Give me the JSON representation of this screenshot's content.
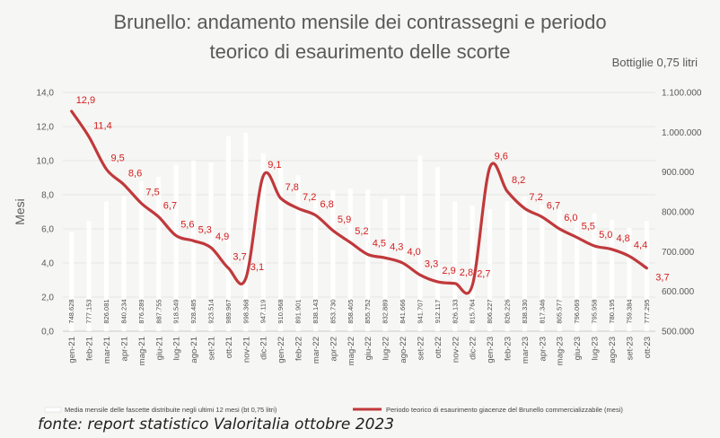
{
  "source_note": "fonte: report statistico Valoritalia ottobre 2023",
  "chart_data": {
    "type": "bar+line",
    "title_lines": [
      "Brunello: andamento mensile dei contrassegni e periodo",
      "teorico di esaurimento delle scorte"
    ],
    "subtitle": "Bottiglie 0,75 litri",
    "ylabel": "Mesi",
    "y_left": {
      "min": 0,
      "max": 14,
      "step": 2,
      "ticks": [
        "0,0",
        "2,0",
        "4,0",
        "6,0",
        "8,0",
        "10,0",
        "12,0",
        "14,0"
      ]
    },
    "y_right": {
      "min": 500000,
      "max": 1100000,
      "step": 100000,
      "ticks": [
        "500.000",
        "600.000",
        "700.000",
        "800.000",
        "900.000",
        "1.000.000",
        "1.100.000"
      ]
    },
    "categories": [
      "gen-21",
      "feb-21",
      "mar-21",
      "apr-21",
      "mag-21",
      "giu-21",
      "lug-21",
      "ago-21",
      "set-21",
      "ott-21",
      "nov-21",
      "dic-21",
      "gen-22",
      "feb-22",
      "mar-22",
      "apr-22",
      "mag-22",
      "giu-22",
      "lug-22",
      "ago-22",
      "set-22",
      "ott-22",
      "nov-22",
      "dic-22",
      "gen-23",
      "feb-23",
      "mar-23",
      "apr-23",
      "mag-23",
      "giu-23",
      "lug-23",
      "ago-23",
      "set-23",
      "ott-23"
    ],
    "series": [
      {
        "name": "Media mensile delle fascette distribuite negli ultimi 12 mesi (bt 0,75 litri)",
        "type": "bar",
        "axis": "right",
        "color": "#ffffff",
        "values": [
          748628,
          777153,
          826081,
          840234,
          876289,
          887755,
          918549,
          928485,
          923514,
          989967,
          998368,
          947119,
          910968,
          891901,
          838143,
          853730,
          858405,
          855752,
          832889,
          841666,
          941707,
          912117,
          826133,
          815764,
          806227,
          826226,
          838330,
          817346,
          805577,
          796069,
          795958,
          780195,
          759384,
          777295
        ],
        "labels": [
          "748.628",
          "777.153",
          "826.081",
          "840.234",
          "876.289",
          "887.755",
          "918.549",
          "928.485",
          "923.514",
          "989.967",
          "998.368",
          "947.119",
          "910.968",
          "891.901",
          "838.143",
          "853.730",
          "858.405",
          "855.752",
          "832.889",
          "841.666",
          "941.707",
          "912.117",
          "826.133",
          "815.764",
          "806.227",
          "826.226",
          "838.330",
          "817.346",
          "805.577",
          "796.069",
          "795.958",
          "780.195",
          "759.384",
          "777.295"
        ]
      },
      {
        "name": "Periodo teorico di esaurimento giacenze del Brunello commercializzabile (mesi)",
        "type": "line",
        "axis": "left",
        "color": "#c0393b",
        "values": [
          12.9,
          11.4,
          9.5,
          8.6,
          7.5,
          6.7,
          5.6,
          5.3,
          4.9,
          3.7,
          3.1,
          9.1,
          7.8,
          7.2,
          6.8,
          5.9,
          5.2,
          4.5,
          4.3,
          4.0,
          3.3,
          2.9,
          2.8,
          2.7,
          9.6,
          8.2,
          7.2,
          6.7,
          6.0,
          5.5,
          5.0,
          4.8,
          4.4,
          3.7
        ],
        "labels": [
          "12,9",
          "11,4",
          "9,5",
          "8,6",
          "7,5",
          "6,7",
          "5,6",
          "5,3",
          "4,9",
          "3,7",
          "3,1",
          "9,1",
          "7,8",
          "7,2",
          "6,8",
          "5,9",
          "5,2",
          "4,5",
          "4,3",
          "4,0",
          "3,3",
          "2,9",
          "2,8",
          "2,7",
          "9,6",
          "8,2",
          "7,2",
          "6,7",
          "6,0",
          "5,5",
          "5,0",
          "4,8",
          "4,4",
          "3,7"
        ]
      }
    ],
    "legend_position": "bottom"
  }
}
